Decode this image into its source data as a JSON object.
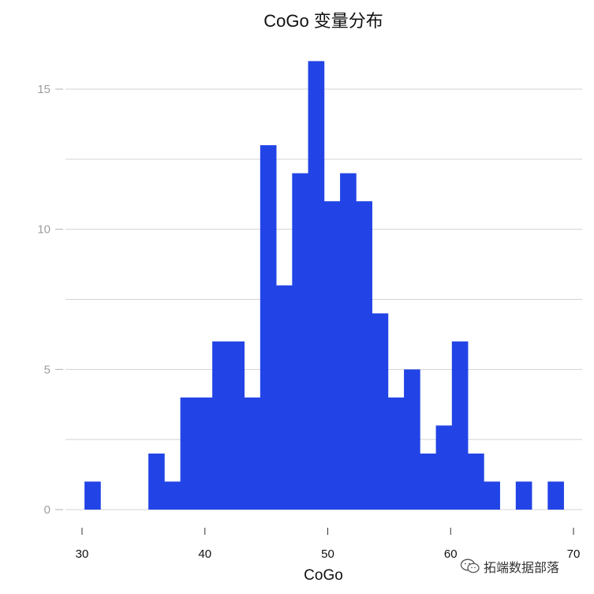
{
  "chart_data": {
    "type": "bar",
    "title": "CoGo 变量分布",
    "xlabel": "CoGo",
    "ylabel": "",
    "bin_width": 1.3,
    "bins": [
      {
        "x0": 30.2,
        "x1": 31.5,
        "count": 1
      },
      {
        "x0": 31.5,
        "x1": 32.8,
        "count": 0
      },
      {
        "x0": 32.8,
        "x1": 34.1,
        "count": 0
      },
      {
        "x0": 34.1,
        "x1": 35.4,
        "count": 0
      },
      {
        "x0": 35.4,
        "x1": 36.7,
        "count": 2
      },
      {
        "x0": 36.7,
        "x1": 38.0,
        "count": 1
      },
      {
        "x0": 38.0,
        "x1": 39.3,
        "count": 4
      },
      {
        "x0": 39.3,
        "x1": 40.6,
        "count": 4
      },
      {
        "x0": 40.6,
        "x1": 41.9,
        "count": 6
      },
      {
        "x0": 41.9,
        "x1": 43.2,
        "count": 6
      },
      {
        "x0": 43.2,
        "x1": 44.5,
        "count": 4
      },
      {
        "x0": 44.5,
        "x1": 45.8,
        "count": 13
      },
      {
        "x0": 45.8,
        "x1": 47.1,
        "count": 8
      },
      {
        "x0": 47.1,
        "x1": 48.4,
        "count": 12
      },
      {
        "x0": 48.4,
        "x1": 49.7,
        "count": 16
      },
      {
        "x0": 49.7,
        "x1": 51.0,
        "count": 11
      },
      {
        "x0": 51.0,
        "x1": 52.3,
        "count": 12
      },
      {
        "x0": 52.3,
        "x1": 53.6,
        "count": 11
      },
      {
        "x0": 53.6,
        "x1": 54.9,
        "count": 7
      },
      {
        "x0": 54.9,
        "x1": 56.2,
        "count": 4
      },
      {
        "x0": 56.2,
        "x1": 57.5,
        "count": 5
      },
      {
        "x0": 57.5,
        "x1": 58.8,
        "count": 2
      },
      {
        "x0": 58.8,
        "x1": 60.1,
        "count": 3
      },
      {
        "x0": 60.1,
        "x1": 61.4,
        "count": 6
      },
      {
        "x0": 61.4,
        "x1": 62.7,
        "count": 2
      },
      {
        "x0": 62.7,
        "x1": 64.0,
        "count": 1
      },
      {
        "x0": 64.0,
        "x1": 65.3,
        "count": 0
      },
      {
        "x0": 65.3,
        "x1": 66.6,
        "count": 1
      },
      {
        "x0": 66.6,
        "x1": 67.9,
        "count": 0
      },
      {
        "x0": 67.9,
        "x1": 69.2,
        "count": 1
      }
    ],
    "xlim": [
      29.5,
      70.5
    ],
    "ylim": [
      0,
      17.5
    ],
    "xticks": [
      30,
      40,
      50,
      60,
      70
    ],
    "yticks": [
      0,
      5,
      10,
      15
    ],
    "gridlines_y": [
      0,
      2.5,
      5,
      7.5,
      10,
      12.5,
      15
    ],
    "grid": "horizontal",
    "bar_color": "#2244e6"
  },
  "watermark": {
    "text": "拓端数据部落",
    "icon": "wechat-icon"
  }
}
